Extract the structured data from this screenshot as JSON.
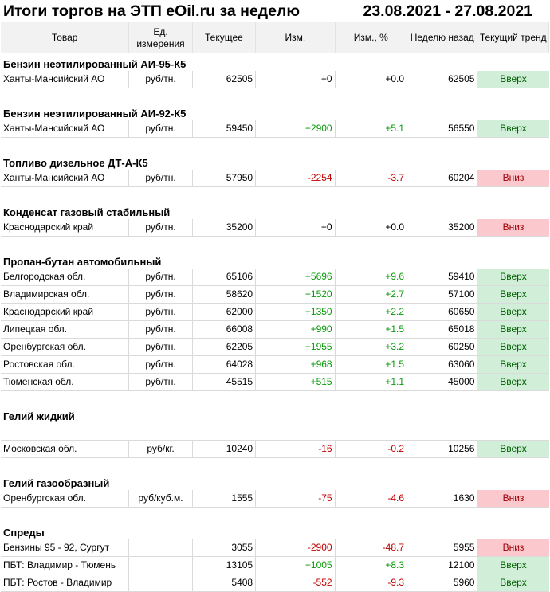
{
  "title": "Итоги торгов на ЭТП eOil.ru за неделю",
  "period": "23.08.2021 - 27.08.2021",
  "headers": {
    "good": "Товар",
    "unit": "Ед. измерения",
    "current": "Текущее",
    "change": "Изм.",
    "change_pct": "Изм., %",
    "prev": "Неделю назад",
    "trend": "Текущий тренд"
  },
  "sections": [
    {
      "name": "Бензин неэтилированный АИ-95-К5",
      "rows": [
        {
          "region": "Ханты-Мансийский АО",
          "unit": "руб/тн.",
          "current": "62505",
          "change": "+0",
          "pct": "+0.0",
          "prev": "62505",
          "trend": "Вверх",
          "dir": "up"
        }
      ]
    },
    {
      "name": "Бензин неэтилированный АИ-92-К5",
      "rows": [
        {
          "region": "Ханты-Мансийский АО",
          "unit": "руб/тн.",
          "current": "59450",
          "change": "+2900",
          "pct": "+5.1",
          "prev": "56550",
          "trend": "Вверх",
          "dir": "up"
        }
      ]
    },
    {
      "name": "Топливо дизельное ДТ-А-К5",
      "rows": [
        {
          "region": "Ханты-Мансийский АО",
          "unit": "руб/тн.",
          "current": "57950",
          "change": "-2254",
          "pct": "-3.7",
          "prev": "60204",
          "trend": "Вниз",
          "dir": "down"
        }
      ]
    },
    {
      "name": "Конденсат газовый стабильный",
      "rows": [
        {
          "region": "Краснодарский край",
          "unit": "руб/тн.",
          "current": "35200",
          "change": "+0",
          "pct": "+0.0",
          "prev": "35200",
          "trend": "Вниз",
          "dir": "down"
        }
      ]
    },
    {
      "name": "Пропан-бутан автомобильный",
      "rows": [
        {
          "region": "Белгородская обл.",
          "unit": "руб/тн.",
          "current": "65106",
          "change": "+5696",
          "pct": "+9.6",
          "prev": "59410",
          "trend": "Вверх",
          "dir": "up"
        },
        {
          "region": "Владимирская обл.",
          "unit": "руб/тн.",
          "current": "58620",
          "change": "+1520",
          "pct": "+2.7",
          "prev": "57100",
          "trend": "Вверх",
          "dir": "up"
        },
        {
          "region": "Краснодарский край",
          "unit": "руб/тн.",
          "current": "62000",
          "change": "+1350",
          "pct": "+2.2",
          "prev": "60650",
          "trend": "Вверх",
          "dir": "up"
        },
        {
          "region": "Липецкая обл.",
          "unit": "руб/тн.",
          "current": "66008",
          "change": "+990",
          "pct": "+1.5",
          "prev": "65018",
          "trend": "Вверх",
          "dir": "up"
        },
        {
          "region": "Оренбургская обл.",
          "unit": "руб/тн.",
          "current": "62205",
          "change": "+1955",
          "pct": "+3.2",
          "prev": "60250",
          "trend": "Вверх",
          "dir": "up"
        },
        {
          "region": "Ростовская обл.",
          "unit": "руб/тн.",
          "current": "64028",
          "change": "+968",
          "pct": "+1.5",
          "prev": "63060",
          "trend": "Вверх",
          "dir": "up"
        },
        {
          "region": "Тюменская обл.",
          "unit": "руб/тн.",
          "current": "45515",
          "change": "+515",
          "pct": "+1.1",
          "prev": "45000",
          "trend": "Вверх",
          "dir": "up"
        }
      ]
    },
    {
      "name": "Гелий жидкий",
      "rows": [
        {
          "region": "Московская обл.",
          "unit": "руб/кг.",
          "current": "10240",
          "change": "-16",
          "pct": "-0.2",
          "prev": "10256",
          "trend": "Вверх",
          "dir": "up"
        }
      ]
    },
    {
      "name": "Гелий газообразный",
      "rows": [
        {
          "region": "Оренбургская обл.",
          "unit": "руб/куб.м.",
          "current": "1555",
          "change": "-75",
          "pct": "-4.6",
          "prev": "1630",
          "trend": "Вниз",
          "dir": "down"
        }
      ]
    },
    {
      "name": "Спреды",
      "rows": [
        {
          "region": "Бензины 95 - 92, Сургут",
          "unit": "",
          "current": "3055",
          "change": "-2900",
          "pct": "-48.7",
          "prev": "5955",
          "trend": "Вниз",
          "dir": "down"
        },
        {
          "region": "ПБТ: Владимир - Тюмень",
          "unit": "",
          "current": "13105",
          "change": "+1005",
          "pct": "+8.3",
          "prev": "12100",
          "trend": "Вверх",
          "dir": "up"
        },
        {
          "region": "ПБТ: Ростов - Владимир",
          "unit": "",
          "current": "5408",
          "change": "-552",
          "pct": "-9.3",
          "prev": "5960",
          "trend": "Вверх",
          "dir": "up"
        }
      ]
    }
  ]
}
